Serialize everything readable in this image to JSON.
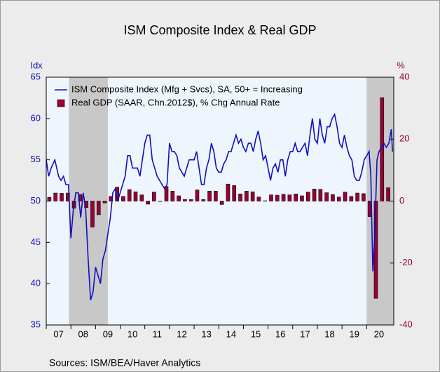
{
  "chart_data": {
    "type": "line-bar",
    "title": "ISM Composite Index & Real GDP",
    "y_label": "Idx",
    "y2_label": "%",
    "source": "Sources:   ISM/BEA/Haver Analytics",
    "xlim": [
      2007,
      2021.1
    ],
    "xticks": [
      {
        "value": 2007.5,
        "label": "07"
      },
      {
        "value": 2008.5,
        "label": "08"
      },
      {
        "value": 2009.5,
        "label": "09"
      },
      {
        "value": 2010.5,
        "label": "10"
      },
      {
        "value": 2011.5,
        "label": "11"
      },
      {
        "value": 2012.5,
        "label": "12"
      },
      {
        "value": 2013.5,
        "label": "13"
      },
      {
        "value": 2014.5,
        "label": "14"
      },
      {
        "value": 2015.5,
        "label": "15"
      },
      {
        "value": 2016.5,
        "label": "16"
      },
      {
        "value": 2017.5,
        "label": "17"
      },
      {
        "value": 2018.5,
        "label": "18"
      },
      {
        "value": 2019.5,
        "label": "19"
      },
      {
        "value": 2020.5,
        "label": "20"
      }
    ],
    "ylim": [
      35,
      65
    ],
    "yticks": [
      35,
      40,
      45,
      50,
      55,
      60,
      65
    ],
    "y2lim": [
      -40,
      40
    ],
    "y2ticks": [
      -40,
      -20,
      0,
      20,
      40
    ],
    "recessions": [
      [
        2007.92,
        2009.5
      ],
      [
        2020.0,
        2021.1
      ]
    ],
    "recession_color": "#c8c8c8",
    "background": "#eef5fc",
    "legend": "upper left",
    "series": [
      {
        "name": "ISM Composite Index (Mfg + Svcs), SA, 50+ = Increasing",
        "type": "line",
        "color": "#1010c0",
        "x": [
          2007.0,
          2007.1,
          2007.2,
          2007.35,
          2007.5,
          2007.6,
          2007.7,
          2007.8,
          2007.9,
          2008.0,
          2008.1,
          2008.2,
          2008.3,
          2008.4,
          2008.5,
          2008.6,
          2008.7,
          2008.8,
          2008.9,
          2009.0,
          2009.1,
          2009.2,
          2009.3,
          2009.4,
          2009.5,
          2009.6,
          2009.7,
          2009.8,
          2009.9,
          2010.0,
          2010.2,
          2010.3,
          2010.4,
          2010.5,
          2010.6,
          2010.7,
          2010.8,
          2010.9,
          2011.0,
          2011.1,
          2011.2,
          2011.3,
          2011.4,
          2011.5,
          2011.6,
          2011.7,
          2011.8,
          2011.9,
          2012.0,
          2012.1,
          2012.2,
          2012.3,
          2012.4,
          2012.5,
          2012.6,
          2012.7,
          2012.8,
          2012.9,
          2013.0,
          2013.1,
          2013.2,
          2013.3,
          2013.4,
          2013.5,
          2013.6,
          2013.7,
          2013.8,
          2013.9,
          2014.0,
          2014.1,
          2014.2,
          2014.3,
          2014.4,
          2014.5,
          2014.6,
          2014.7,
          2014.8,
          2014.9,
          2015.0,
          2015.1,
          2015.2,
          2015.3,
          2015.4,
          2015.5,
          2015.6,
          2015.7,
          2015.8,
          2015.9,
          2016.0,
          2016.1,
          2016.2,
          2016.3,
          2016.4,
          2016.5,
          2016.6,
          2016.7,
          2016.8,
          2016.9,
          2017.0,
          2017.1,
          2017.2,
          2017.3,
          2017.4,
          2017.5,
          2017.6,
          2017.7,
          2017.8,
          2017.9,
          2018.0,
          2018.1,
          2018.2,
          2018.3,
          2018.4,
          2018.5,
          2018.6,
          2018.7,
          2018.8,
          2018.9,
          2019.0,
          2019.1,
          2019.2,
          2019.3,
          2019.4,
          2019.5,
          2019.6,
          2019.7,
          2019.8,
          2019.9,
          2020.0,
          2020.1,
          2020.17,
          2020.25,
          2020.33,
          2020.42,
          2020.5,
          2020.6,
          2020.7,
          2020.8,
          2020.9,
          2021.0,
          2021.05
        ],
        "values": [
          55,
          53,
          54,
          55,
          53,
          52.5,
          53,
          52,
          52,
          45.5,
          49,
          51,
          51,
          48,
          51,
          49,
          43,
          38,
          39,
          42,
          41,
          40,
          43,
          44,
          46,
          48,
          51,
          51.5,
          50,
          51,
          53,
          55.5,
          55.5,
          54,
          54,
          54,
          53,
          55,
          57,
          58,
          58,
          55,
          54,
          53,
          52.5,
          52,
          51.5,
          52,
          57,
          56,
          56,
          55.5,
          54,
          53.5,
          53,
          54,
          55,
          55,
          55,
          56,
          54,
          52,
          52,
          54,
          55,
          57,
          56,
          54,
          53.5,
          53.5,
          54.5,
          55,
          56,
          56,
          57,
          58,
          57,
          57.5,
          56.5,
          56,
          57,
          57,
          56,
          57.5,
          58.5,
          57,
          55,
          55.5,
          54,
          52.5,
          54,
          54.5,
          53.5,
          55,
          55,
          53,
          55,
          56,
          56,
          57,
          56,
          56,
          56.5,
          57,
          55.5,
          58,
          60,
          57.5,
          57,
          60,
          58,
          57,
          59,
          59,
          60,
          60.5,
          59,
          57,
          56.5,
          58,
          56.5,
          55.5,
          55,
          53,
          52.5,
          52.5,
          53.5,
          55,
          55.5,
          56,
          53,
          41.5,
          46,
          55,
          56,
          56.5,
          57,
          56.5,
          57,
          58.7,
          56
        ]
      },
      {
        "name": "Real GDP (SAAR, Chn.2012$), % Chg Annual Rate",
        "type": "bar",
        "axis": "y2",
        "color": "#990033",
        "x": [
          2007.125,
          2007.375,
          2007.625,
          2007.875,
          2008.125,
          2008.375,
          2008.625,
          2008.875,
          2009.125,
          2009.375,
          2009.625,
          2009.875,
          2010.125,
          2010.375,
          2010.625,
          2010.875,
          2011.125,
          2011.375,
          2011.625,
          2011.875,
          2012.125,
          2012.375,
          2012.625,
          2012.875,
          2013.125,
          2013.375,
          2013.625,
          2013.875,
          2014.125,
          2014.375,
          2014.625,
          2014.875,
          2015.125,
          2015.375,
          2015.625,
          2015.875,
          2016.125,
          2016.375,
          2016.625,
          2016.875,
          2017.125,
          2017.375,
          2017.625,
          2017.875,
          2018.125,
          2018.375,
          2018.625,
          2018.875,
          2019.125,
          2019.375,
          2019.625,
          2019.875,
          2020.125,
          2020.375,
          2020.625,
          2020.875
        ],
        "values": [
          1.2,
          2.6,
          2.5,
          2.6,
          -2.3,
          2.1,
          -2.1,
          -8.4,
          -4.4,
          -0.6,
          1.5,
          4.5,
          1.5,
          3.7,
          3.0,
          2.0,
          -1.0,
          2.9,
          -0.1,
          4.7,
          3.2,
          1.7,
          0.5,
          0.5,
          3.6,
          0.5,
          3.2,
          3.2,
          -1.1,
          5.5,
          5.0,
          2.3,
          3.2,
          3.0,
          1.3,
          0.1,
          2.0,
          1.9,
          2.2,
          2.0,
          2.3,
          1.7,
          2.9,
          3.9,
          3.8,
          2.7,
          2.1,
          1.3,
          2.9,
          1.5,
          2.6,
          2.4,
          -5.0,
          -31.4,
          33.4,
          4.3
        ]
      }
    ]
  }
}
